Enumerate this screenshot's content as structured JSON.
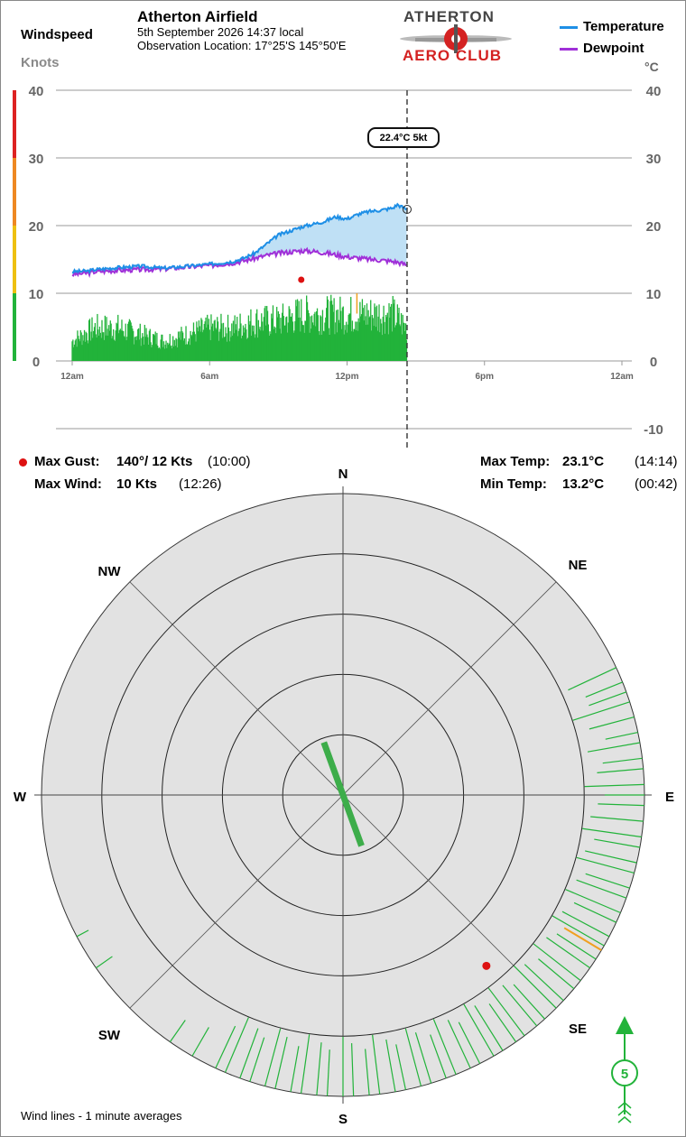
{
  "header": {
    "windspeed_label": "Windspeed",
    "knots_label": "Knots",
    "station_name": "Atherton Airfield",
    "date_time": "5th September 2026  14:37 local",
    "location": "Observation Location: 17°25'S 145°50'E",
    "logo_top": "ATHERTON",
    "logo_bottom": "AERO CLUB",
    "legend_temperature": "Temperature",
    "legend_dewpoint": "Dewpoint",
    "temp_unit": "°C"
  },
  "tooltip": "22.4°C  5kt",
  "stats": {
    "max_gust_label": "Max Gust:",
    "max_gust_value": "140°/ 12 Kts",
    "max_gust_time": "(10:00)",
    "max_wind_label": "Max Wind:",
    "max_wind_value": "10 Kts",
    "max_wind_time": "(12:26)",
    "max_temp_label": "Max Temp:",
    "max_temp_value": "23.1°C",
    "max_temp_time": "(14:14)",
    "min_temp_label": "Min Temp:",
    "min_temp_value": "13.2°C",
    "min_temp_time": "(00:42)"
  },
  "compass": {
    "labels": [
      "N",
      "NE",
      "E",
      "SE",
      "S",
      "SW",
      "W",
      "NW"
    ],
    "footnote": "Wind lines - 1 minute averages",
    "current_speed": "5"
  },
  "colors": {
    "temperature": "#1e8fe6",
    "dewpoint": "#a030d8",
    "wind": "#22b33a",
    "gust_marker": "#dd1111",
    "max_wind_line": "#f0a020",
    "temp_fill": "#bfe0f5",
    "compass_bg": "#e2e2e2",
    "scale_red": "#dd2222",
    "scale_orange": "#ee8822",
    "scale_yellow": "#eec011",
    "scale_green": "#22b33a"
  },
  "chart_data": {
    "type": "line",
    "x_ticks": [
      "12am",
      "6am",
      "12pm",
      "6pm",
      "12am"
    ],
    "wind_axis": {
      "ylim": [
        0,
        40
      ],
      "ticks": [
        0,
        10,
        20,
        30,
        40
      ],
      "unit": "Knots"
    },
    "temp_axis": {
      "ylim": [
        -10,
        40
      ],
      "ticks": [
        -10,
        0,
        10,
        20,
        30,
        40
      ],
      "unit": "°C"
    },
    "wind_scale_bands": [
      {
        "from": 0,
        "to": 10,
        "color": "green"
      },
      {
        "from": 10,
        "to": 20,
        "color": "yellow"
      },
      {
        "from": 20,
        "to": 30,
        "color": "orange"
      },
      {
        "from": 30,
        "to": 40,
        "color": "red"
      }
    ],
    "current_time_hours": 14.62,
    "series": [
      {
        "name": "Temperature",
        "x": [
          0,
          0.7,
          1,
          2,
          3,
          4,
          5,
          6,
          7,
          7.5,
          8,
          8.5,
          9,
          9.5,
          10,
          10.5,
          11,
          11.5,
          12,
          12.5,
          13,
          13.5,
          14,
          14.2,
          14.6
        ],
        "values": [
          13.2,
          13.3,
          13.5,
          13.8,
          14.0,
          13.7,
          14.0,
          14.3,
          14.7,
          15.2,
          16.0,
          17.3,
          18.6,
          19.2,
          19.8,
          20.2,
          20.6,
          21.3,
          21.0,
          21.7,
          22.1,
          22.3,
          22.6,
          23.1,
          22.4
        ]
      },
      {
        "name": "Dewpoint",
        "x": [
          0,
          0.7,
          1,
          2,
          3,
          4,
          5,
          6,
          7,
          7.5,
          8,
          8.5,
          9,
          9.5,
          10,
          10.5,
          11,
          11.5,
          12,
          12.5,
          13,
          13.5,
          14,
          14.2,
          14.6
        ],
        "values": [
          12.8,
          13.0,
          13.2,
          13.4,
          13.5,
          13.6,
          13.9,
          14.1,
          14.5,
          14.8,
          15.2,
          15.6,
          15.9,
          16.1,
          16.3,
          16.2,
          16.0,
          15.7,
          15.4,
          15.2,
          15.0,
          14.9,
          14.7,
          14.6,
          14.2
        ]
      },
      {
        "name": "Windspeed",
        "x": [
          0,
          1,
          2,
          3,
          4,
          5,
          6,
          7,
          8,
          9,
          10,
          11,
          12,
          13,
          14,
          14.6
        ],
        "values": [
          3,
          5,
          5,
          4,
          3,
          4,
          5,
          5,
          6,
          6,
          7,
          7,
          7,
          7,
          7,
          5
        ]
      }
    ],
    "annotations": [
      {
        "type": "max_gust",
        "x": 10.0,
        "value": 12,
        "direction_deg": 140
      },
      {
        "type": "max_wind",
        "x": 12.43,
        "value": 10
      }
    ]
  },
  "rose_data": {
    "type": "polar",
    "max_knots": 10,
    "rings_knots": [
      2,
      4,
      6,
      8,
      10
    ],
    "current": {
      "direction_deg": 160,
      "speed_kt": 5
    },
    "max_gust": {
      "direction_deg": 140,
      "speed_kt": 12
    },
    "max_wind": {
      "direction_deg": 121,
      "speed_kt": 10
    },
    "wind_directions_deg": [
      65,
      68,
      70,
      72,
      75,
      78,
      80,
      83,
      85,
      88,
      90,
      92,
      95,
      98,
      100,
      103,
      105,
      108,
      110,
      113,
      115,
      118,
      120,
      123,
      125,
      128,
      130,
      133,
      135,
      138,
      140,
      143,
      145,
      148,
      150,
      153,
      155,
      158,
      160,
      163,
      165,
      168,
      170,
      173,
      175,
      178,
      180,
      183,
      185,
      188,
      190,
      193,
      195,
      198,
      200,
      203,
      205,
      210,
      215,
      235,
      242
    ],
    "wind_speeds_kt": [
      8,
      6,
      6,
      9,
      7,
      5,
      8,
      6,
      7,
      9,
      6,
      7,
      8,
      9,
      7,
      8,
      9,
      7,
      8,
      9,
      7,
      8,
      9,
      7,
      8,
      9,
      7,
      8,
      9,
      7,
      8,
      9,
      7,
      8,
      9,
      7,
      8,
      9,
      7,
      8,
      9,
      7,
      8,
      9,
      7,
      8,
      9,
      7,
      8,
      9,
      7,
      8,
      9,
      7,
      8,
      9,
      7,
      5,
      4,
      3,
      2
    ]
  }
}
